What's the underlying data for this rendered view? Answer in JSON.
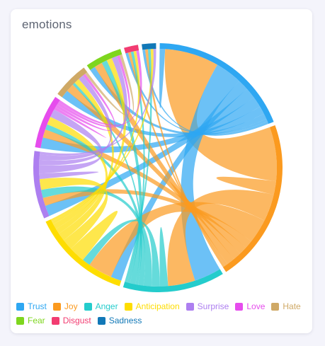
{
  "card": {
    "title": "emotions"
  },
  "chart_data": {
    "type": "chord",
    "title": "emotions",
    "labels": [
      "Trust",
      "Joy",
      "Anger",
      "Anticipation",
      "Surprise",
      "Love",
      "Hate",
      "Fear",
      "Disgust",
      "Sadness"
    ],
    "colors": [
      "#2ea7f2",
      "#fb9a1f",
      "#24cccc",
      "#fedd00",
      "#ad7ff0",
      "#e64ced",
      "#cfa966",
      "#7ed61e",
      "#f23c71",
      "#1178b7"
    ],
    "matrix": [
      [
        2,
        20,
        10,
        4,
        4,
        4,
        3,
        2,
        1,
        1
      ],
      [
        20,
        5,
        10,
        9,
        3,
        3,
        3,
        3,
        1,
        1
      ],
      [
        10,
        10,
        3,
        3,
        3,
        2,
        1,
        2,
        1,
        1
      ],
      [
        4,
        9,
        3,
        6,
        4,
        3,
        2,
        2,
        1,
        1
      ],
      [
        4,
        3,
        3,
        4,
        2,
        3,
        2,
        2,
        0,
        1
      ],
      [
        4,
        3,
        2,
        3,
        3,
        1,
        1,
        1,
        1,
        0
      ],
      [
        3,
        3,
        1,
        2,
        2,
        1,
        0,
        1,
        0,
        0
      ],
      [
        2,
        3,
        2,
        2,
        2,
        1,
        1,
        0,
        0,
        0
      ],
      [
        1,
        1,
        1,
        1,
        0,
        1,
        0,
        0,
        0,
        0
      ],
      [
        1,
        1,
        1,
        1,
        1,
        0,
        0,
        0,
        0,
        0
      ]
    ],
    "legend_position": "bottom"
  }
}
